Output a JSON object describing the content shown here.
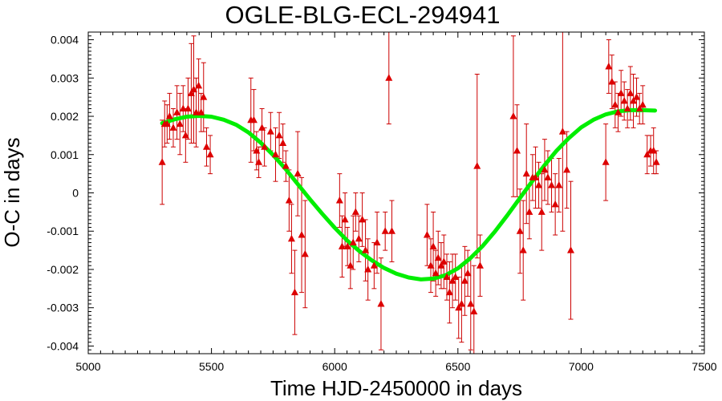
{
  "chart_data": {
    "type": "scatter",
    "title": "OGLE-BLG-ECL-294941",
    "xlabel": "Time HJD-2450000 in days",
    "ylabel": "O-C in days",
    "xlim": [
      5000,
      7500
    ],
    "ylim": [
      -0.0042,
      0.0042
    ],
    "xticks": [
      5000,
      5500,
      6000,
      6500,
      7000,
      7500
    ],
    "xtick_labels": [
      "5000",
      "5500",
      "6000",
      "6500",
      "7000",
      "7500"
    ],
    "yticks": [
      0.004,
      0.003,
      0.002,
      0.001,
      0,
      -0.001,
      -0.002,
      -0.003,
      -0.004
    ],
    "ytick_labels": [
      "0.004",
      "0.003",
      "0.002",
      "0.001",
      "0",
      "-0.001",
      "-0.002",
      "-0.003",
      "-0.004"
    ],
    "grid": false,
    "colors": {
      "points": "#dd0000",
      "errorbars": "#cc0000",
      "fit": "#00ee00",
      "axes": "#000000"
    },
    "series": [
      {
        "type": "scatter-errorbar",
        "marker": "triangle",
        "points": [
          {
            "x": 5300,
            "y": 0.0008,
            "err": 0.0011
          },
          {
            "x": 5310,
            "y": 0.0018,
            "err": 0.0006
          },
          {
            "x": 5320,
            "y": 0.0018,
            "err": 0.0005
          },
          {
            "x": 5330,
            "y": 0.002,
            "err": 0.0006
          },
          {
            "x": 5345,
            "y": 0.0017,
            "err": 0.0005
          },
          {
            "x": 5360,
            "y": 0.0021,
            "err": 0.0007
          },
          {
            "x": 5372,
            "y": 0.0018,
            "err": 0.0008
          },
          {
            "x": 5385,
            "y": 0.0022,
            "err": 0.0006
          },
          {
            "x": 5395,
            "y": 0.0015,
            "err": 0.0007
          },
          {
            "x": 5405,
            "y": 0.0022,
            "err": 0.0008
          },
          {
            "x": 5418,
            "y": 0.0026,
            "err": 0.0013
          },
          {
            "x": 5428,
            "y": 0.0027,
            "err": 0.0014
          },
          {
            "x": 5438,
            "y": 0.0021,
            "err": 0.0009
          },
          {
            "x": 5448,
            "y": 0.0028,
            "err": 0.0007
          },
          {
            "x": 5458,
            "y": 0.0021,
            "err": 0.0005
          },
          {
            "x": 5468,
            "y": 0.0025,
            "err": 0.0009
          },
          {
            "x": 5480,
            "y": 0.0012,
            "err": 0.0005
          },
          {
            "x": 5495,
            "y": 0.001,
            "err": 0.0005
          },
          {
            "x": 5660,
            "y": 0.0019,
            "err": 0.0011
          },
          {
            "x": 5672,
            "y": 0.0019,
            "err": 0.0008
          },
          {
            "x": 5683,
            "y": 0.0011,
            "err": 0.0005
          },
          {
            "x": 5692,
            "y": 0.0008,
            "err": 0.0004
          },
          {
            "x": 5705,
            "y": 0.0017,
            "err": 0.0005
          },
          {
            "x": 5715,
            "y": 0.0012,
            "err": 0.0005
          },
          {
            "x": 5740,
            "y": 0.0016,
            "err": 0.0005
          },
          {
            "x": 5760,
            "y": 0.001,
            "err": 0.0007
          },
          {
            "x": 5775,
            "y": 0.0015,
            "err": 0.0006
          },
          {
            "x": 5790,
            "y": 0.0013,
            "err": 0.0005
          },
          {
            "x": 5802,
            "y": 0.0007,
            "err": 0.0004
          },
          {
            "x": 5815,
            "y": -0.0002,
            "err": 0.0008
          },
          {
            "x": 5825,
            "y": -0.0012,
            "err": 0.0009
          },
          {
            "x": 5838,
            "y": -0.0026,
            "err": 0.0011
          },
          {
            "x": 5850,
            "y": 0.0005,
            "err": 0.0011
          },
          {
            "x": 5866,
            "y": -0.0011,
            "err": 0.0015
          },
          {
            "x": 5880,
            "y": -0.0016,
            "err": 0.0014
          },
          {
            "x": 6020,
            "y": -0.0002,
            "err": 0.0007
          },
          {
            "x": 6030,
            "y": -0.0014,
            "err": 0.0008
          },
          {
            "x": 6042,
            "y": -0.0007,
            "err": 0.0007
          },
          {
            "x": 6052,
            "y": -0.0014,
            "err": 0.0005
          },
          {
            "x": 6064,
            "y": -0.0019,
            "err": 0.0006
          },
          {
            "x": 6075,
            "y": -0.0013,
            "err": 0.0007
          },
          {
            "x": 6085,
            "y": -0.0005,
            "err": 0.0005
          },
          {
            "x": 6098,
            "y": -0.0012,
            "err": 0.0006
          },
          {
            "x": 6112,
            "y": -0.0007,
            "err": 0.0007
          },
          {
            "x": 6125,
            "y": -0.0015,
            "err": 0.0008
          },
          {
            "x": 6135,
            "y": -0.002,
            "err": 0.0008
          },
          {
            "x": 6160,
            "y": -0.0019,
            "err": 0.0006
          },
          {
            "x": 6172,
            "y": -0.0013,
            "err": 0.0008
          },
          {
            "x": 6188,
            "y": -0.0029,
            "err": 0.0012
          },
          {
            "x": 6205,
            "y": -0.001,
            "err": 0.0005
          },
          {
            "x": 6220,
            "y": 0.003,
            "err": 0.0012
          },
          {
            "x": 6232,
            "y": -0.001,
            "err": 0.0008
          },
          {
            "x": 6375,
            "y": -0.0011,
            "err": 0.0008
          },
          {
            "x": 6390,
            "y": -0.0019,
            "err": 0.0007
          },
          {
            "x": 6400,
            "y": -0.0014,
            "err": 0.0009
          },
          {
            "x": 6410,
            "y": -0.0021,
            "err": 0.0006
          },
          {
            "x": 6420,
            "y": -0.0017,
            "err": 0.0007
          },
          {
            "x": 6432,
            "y": -0.0019,
            "err": 0.0006
          },
          {
            "x": 6443,
            "y": -0.0018,
            "err": 0.0007
          },
          {
            "x": 6455,
            "y": -0.0022,
            "err": 0.0006
          },
          {
            "x": 6466,
            "y": -0.0026,
            "err": 0.0008
          },
          {
            "x": 6478,
            "y": -0.0023,
            "err": 0.0007
          },
          {
            "x": 6490,
            "y": -0.0022,
            "err": 0.0006
          },
          {
            "x": 6503,
            "y": -0.003,
            "err": 0.0008
          },
          {
            "x": 6515,
            "y": -0.0029,
            "err": 0.001
          },
          {
            "x": 6528,
            "y": -0.0023,
            "err": 0.0009
          },
          {
            "x": 6540,
            "y": -0.0021,
            "err": 0.0006
          },
          {
            "x": 6552,
            "y": -0.0029,
            "err": 0.0012
          },
          {
            "x": 6565,
            "y": -0.0031,
            "err": 0.0012
          },
          {
            "x": 6578,
            "y": 0.0007,
            "err": 0.0024
          },
          {
            "x": 6590,
            "y": -0.0019,
            "err": 0.0008
          },
          {
            "x": 6725,
            "y": 0.002,
            "err": 0.0021
          },
          {
            "x": 6740,
            "y": 0.0011,
            "err": 0.0012
          },
          {
            "x": 6752,
            "y": -0.001,
            "err": 0.0011
          },
          {
            "x": 6765,
            "y": -0.0015,
            "err": 0.0013
          },
          {
            "x": 6778,
            "y": 0.0005,
            "err": 0.0013
          },
          {
            "x": 6790,
            "y": -0.0005,
            "err": 0.0007
          },
          {
            "x": 6803,
            "y": 0.0004,
            "err": 0.0006
          },
          {
            "x": 6815,
            "y": 0.0004,
            "err": 0.0008
          },
          {
            "x": 6828,
            "y": 0.0002,
            "err": 0.0006
          },
          {
            "x": 6840,
            "y": -0.0005,
            "err": 0.001
          },
          {
            "x": 6852,
            "y": 0.0006,
            "err": 0.0008
          },
          {
            "x": 6865,
            "y": 0.0004,
            "err": 0.0007
          },
          {
            "x": 6880,
            "y": 0.0002,
            "err": 0.0007
          },
          {
            "x": 6895,
            "y": -0.0003,
            "err": 0.0008
          },
          {
            "x": 6910,
            "y": 0.0002,
            "err": 0.0007
          },
          {
            "x": 6925,
            "y": 0.0016,
            "err": 0.0026
          },
          {
            "x": 6942,
            "y": 0.0006,
            "err": 0.001
          },
          {
            "x": 6958,
            "y": -0.0015,
            "err": 0.0018
          },
          {
            "x": 7100,
            "y": 0.0008,
            "err": 0.001
          },
          {
            "x": 7112,
            "y": 0.0033,
            "err": 0.0007
          },
          {
            "x": 7125,
            "y": 0.0029,
            "err": 0.0007
          },
          {
            "x": 7138,
            "y": 0.0023,
            "err": 0.0006
          },
          {
            "x": 7150,
            "y": 0.0021,
            "err": 0.0005
          },
          {
            "x": 7162,
            "y": 0.0026,
            "err": 0.0006
          },
          {
            "x": 7175,
            "y": 0.0024,
            "err": 0.0005
          },
          {
            "x": 7188,
            "y": 0.0022,
            "err": 0.0005
          },
          {
            "x": 7200,
            "y": 0.0026,
            "err": 0.0007
          },
          {
            "x": 7212,
            "y": 0.0024,
            "err": 0.0007
          },
          {
            "x": 7225,
            "y": 0.0025,
            "err": 0.0005
          },
          {
            "x": 7237,
            "y": 0.0022,
            "err": 0.0004
          },
          {
            "x": 7250,
            "y": 0.0023,
            "err": 0.0005
          },
          {
            "x": 7268,
            "y": 0.001,
            "err": 0.0005
          },
          {
            "x": 7282,
            "y": 0.0011,
            "err": 0.0004
          },
          {
            "x": 7294,
            "y": 0.0011,
            "err": 0.0006
          },
          {
            "x": 7305,
            "y": 0.0008,
            "err": 0.0003
          }
        ]
      },
      {
        "type": "line",
        "x": [
          5300,
          5350,
          5400,
          5450,
          5500,
          5550,
          5600,
          5650,
          5700,
          5750,
          5800,
          5850,
          5900,
          5950,
          6000,
          6050,
          6100,
          6150,
          6200,
          6250,
          6300,
          6350,
          6400,
          6450,
          6500,
          6550,
          6600,
          6650,
          6700,
          6750,
          6800,
          6850,
          6900,
          6950,
          7000,
          7050,
          7100,
          7150,
          7200,
          7250,
          7300
        ],
        "y": [
          0.00182,
          0.00192,
          0.00199,
          0.00201,
          0.00199,
          0.00191,
          0.00178,
          0.00158,
          0.00131,
          0.00099,
          0.00063,
          0.00023,
          -0.00017,
          -0.00055,
          -0.00091,
          -0.00124,
          -0.00152,
          -0.00176,
          -0.00196,
          -0.00211,
          -0.00221,
          -0.00226,
          -0.00224,
          -0.00215,
          -0.00197,
          -0.00171,
          -0.00139,
          -0.00101,
          -0.00059,
          -0.00015,
          0.00029,
          0.00071,
          0.0011,
          0.00143,
          0.00171,
          0.00191,
          0.00205,
          0.00213,
          0.00216,
          0.00216,
          0.00215
        ]
      }
    ]
  }
}
